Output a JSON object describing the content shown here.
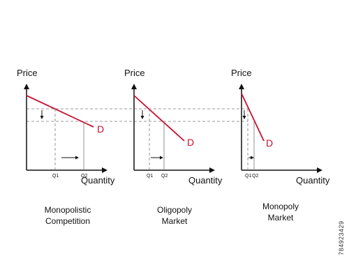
{
  "panels": [
    {
      "id": "monopolistic",
      "price_label": "Price",
      "quantity_label": "Quantity",
      "demand_label": "D",
      "q1_label": "Q1",
      "q2_label": "Q2",
      "caption_lines": [
        "Monopolistic",
        "Competition"
      ]
    },
    {
      "id": "oligopoly",
      "price_label": "Price",
      "quantity_label": "Quantity",
      "demand_label": "D",
      "q1_label": "Q1",
      "q2_label": "Q2",
      "caption_lines": [
        "Oligopoly",
        "Market"
      ]
    },
    {
      "id": "monopoly",
      "price_label": "Price",
      "quantity_label": "Quantity",
      "demand_label": "D",
      "q1_label": "Q1",
      "q2_label": "Q2",
      "caption_lines": [
        "Monopoly",
        "Market"
      ]
    }
  ],
  "colors": {
    "demand": "#c8102e",
    "axis": "#111111",
    "guide": "#777777"
  },
  "watermark_id": "784923429"
}
